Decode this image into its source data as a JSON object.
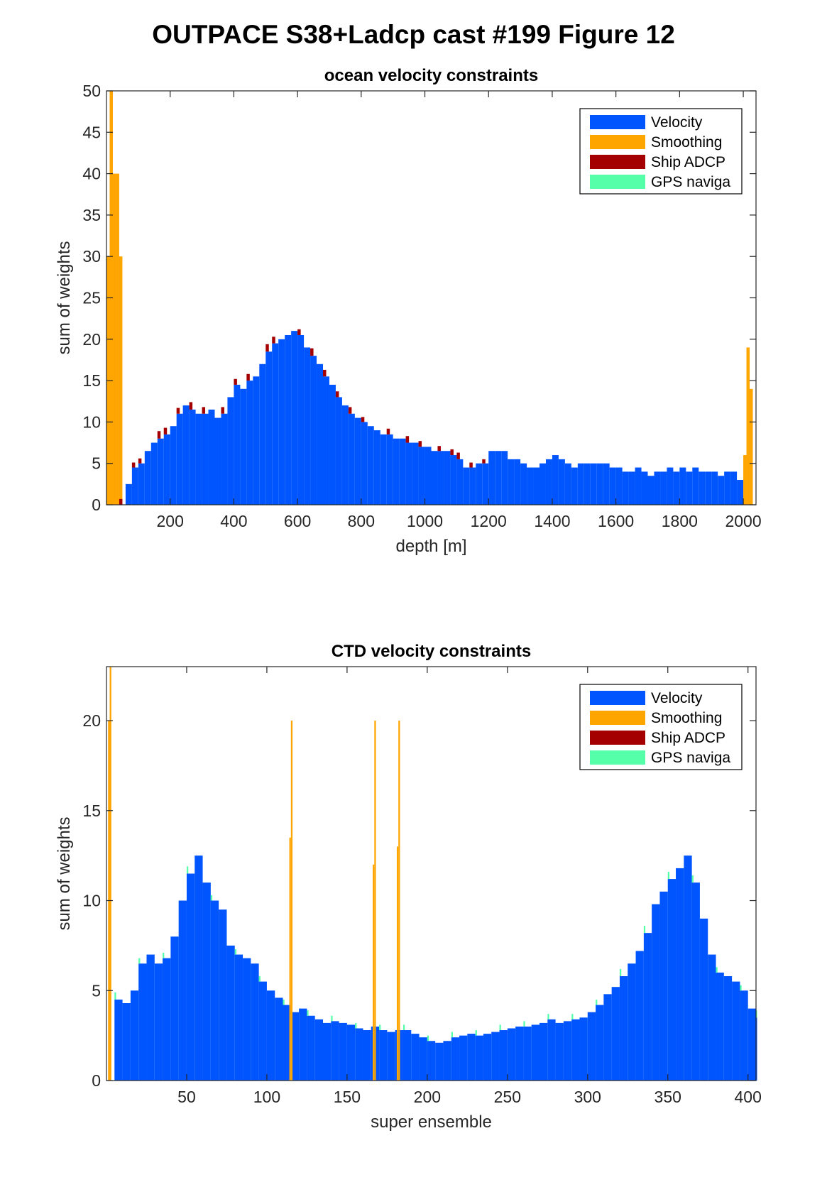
{
  "figure": {
    "title": "OUTPACE S38+Ladcp cast #199  Figure 12"
  },
  "colors": {
    "velocity": "#0055ff",
    "smoothing": "#ffa500",
    "ship_adcp": "#a50000",
    "gps": "#55ffaa",
    "axis": "#262626"
  },
  "chart_data": [
    {
      "type": "bar",
      "stacked": true,
      "title": "ocean velocity constraints",
      "xlabel": "depth [m]",
      "ylabel": "sum of weights",
      "xlim": [
        0,
        2040
      ],
      "ylim": [
        0,
        50
      ],
      "xticks": [
        200,
        400,
        600,
        800,
        1000,
        1200,
        1400,
        1600,
        1800,
        2000
      ],
      "yticks": [
        0,
        5,
        10,
        15,
        20,
        25,
        30,
        35,
        40,
        45,
        50
      ],
      "grid": false,
      "legend_position": "top-right",
      "legend": [
        "Velocity",
        "Smoothing",
        "Ship ADCP",
        "GPS naviga"
      ],
      "bin_width": 10,
      "series": [
        {
          "name": "Velocity",
          "x": [
            0,
            20,
            40,
            60,
            80,
            100,
            120,
            140,
            160,
            180,
            200,
            220,
            240,
            260,
            280,
            300,
            320,
            340,
            360,
            380,
            400,
            420,
            440,
            460,
            480,
            500,
            520,
            540,
            560,
            580,
            600,
            620,
            640,
            660,
            680,
            700,
            720,
            740,
            760,
            780,
            800,
            820,
            840,
            860,
            880,
            900,
            920,
            940,
            960,
            980,
            1000,
            1020,
            1040,
            1060,
            1080,
            1100,
            1120,
            1140,
            1160,
            1180,
            1200,
            1220,
            1240,
            1260,
            1280,
            1300,
            1320,
            1340,
            1360,
            1380,
            1400,
            1420,
            1440,
            1460,
            1480,
            1500,
            1520,
            1540,
            1560,
            1580,
            1600,
            1620,
            1640,
            1660,
            1680,
            1700,
            1720,
            1740,
            1760,
            1780,
            1800,
            1820,
            1840,
            1860,
            1880,
            1900,
            1920,
            1940,
            1960,
            1980,
            2000,
            2020
          ],
          "values": [
            0,
            0,
            0,
            2.5,
            4.5,
            5,
            6.5,
            7.5,
            8,
            8.5,
            9.5,
            11,
            12,
            11.5,
            11,
            11,
            11.5,
            10.5,
            11,
            13,
            14.5,
            14,
            15,
            15.5,
            17,
            18.5,
            19.5,
            20,
            20.5,
            21,
            20.5,
            19,
            18,
            17,
            15.5,
            14.5,
            13,
            12,
            11,
            10.5,
            10,
            9.5,
            9,
            8.5,
            8.5,
            8,
            8,
            7.5,
            7.5,
            7,
            7,
            6.5,
            6.5,
            6.5,
            6,
            5.5,
            4.5,
            4.5,
            5,
            5,
            6.5,
            6.5,
            6.5,
            5.5,
            5.5,
            5,
            4.5,
            4.5,
            5,
            5.5,
            6,
            5.5,
            5,
            4.5,
            5,
            5,
            5,
            5,
            5,
            4.5,
            4.5,
            4,
            4,
            4.5,
            4,
            3.5,
            4,
            4,
            4.5,
            4,
            4.5,
            4,
            4.5,
            4,
            4,
            4,
            3.5,
            4,
            4,
            3,
            0,
            0
          ]
        },
        {
          "name": "Smoothing",
          "x": [
            0,
            10,
            20,
            30,
            40,
            2000,
            2010,
            2020
          ],
          "values": [
            30,
            50,
            40,
            40,
            30,
            6,
            19,
            14
          ]
        },
        {
          "name": "Ship ADCP",
          "x": [
            40,
            80,
            100,
            160,
            180,
            220,
            260,
            300,
            360,
            400,
            440,
            500,
            520,
            600,
            640,
            680,
            720,
            760,
            800,
            880,
            940,
            980,
            1040,
            1080,
            1100,
            1140,
            1180
          ],
          "values": [
            0.7,
            0.6,
            0.6,
            0.9,
            0.8,
            0.7,
            0.9,
            0.8,
            0.8,
            0.7,
            0.8,
            0.9,
            0.8,
            0.7,
            0.9,
            0.8,
            0.7,
            0.8,
            0.6,
            0.7,
            0.8,
            0.7,
            0.6,
            0.7,
            0.8,
            0.6,
            0.5
          ]
        },
        {
          "name": "GPS naviga",
          "x": [],
          "values": []
        }
      ]
    },
    {
      "type": "bar",
      "stacked": true,
      "title": "CTD velocity constraints",
      "xlabel": "super ensemble",
      "ylabel": "sum of weights",
      "xlim": [
        0,
        405
      ],
      "ylim": [
        0,
        23
      ],
      "xticks": [
        50,
        100,
        150,
        200,
        250,
        300,
        350,
        400
      ],
      "yticks": [
        0,
        5,
        10,
        15,
        20
      ],
      "grid": false,
      "legend_position": "top-right",
      "legend": [
        "Velocity",
        "Smoothing",
        "Ship ADCP",
        "GPS naviga"
      ],
      "bin_width": 1,
      "series": [
        {
          "name": "Velocity",
          "x": [
            5,
            10,
            15,
            20,
            25,
            30,
            35,
            40,
            45,
            50,
            55,
            60,
            65,
            70,
            75,
            80,
            85,
            90,
            95,
            100,
            105,
            110,
            115,
            120,
            125,
            130,
            135,
            140,
            145,
            150,
            155,
            160,
            165,
            170,
            175,
            180,
            185,
            190,
            195,
            200,
            205,
            210,
            215,
            220,
            225,
            230,
            235,
            240,
            245,
            250,
            255,
            260,
            265,
            270,
            275,
            280,
            285,
            290,
            295,
            300,
            305,
            310,
            315,
            320,
            325,
            330,
            335,
            340,
            345,
            350,
            355,
            360,
            365,
            370,
            375,
            380,
            385,
            390,
            395,
            400,
            405
          ],
          "values": [
            4.5,
            4.3,
            5,
            6.5,
            7,
            6.5,
            6.8,
            8,
            10,
            11.5,
            12.5,
            11,
            10,
            9.5,
            7.5,
            7,
            6.8,
            6.5,
            5.5,
            5,
            4.6,
            4.2,
            3.8,
            4,
            3.6,
            3.4,
            3.2,
            3.3,
            3.2,
            3.1,
            2.9,
            2.8,
            3,
            2.8,
            2.7,
            2.8,
            2.8,
            2.6,
            2.4,
            2.2,
            2.1,
            2.2,
            2.4,
            2.5,
            2.6,
            2.5,
            2.6,
            2.7,
            2.8,
            2.9,
            3,
            3,
            3.1,
            3.2,
            3.4,
            3.2,
            3.3,
            3.4,
            3.5,
            3.8,
            4.2,
            4.8,
            5.2,
            5.8,
            6.5,
            7.2,
            8.2,
            9.8,
            10.5,
            11.2,
            11.8,
            12.5,
            11,
            9,
            7,
            6,
            5.8,
            5.5,
            5,
            4,
            3.5
          ]
        },
        {
          "name": "Smoothing",
          "x": [
            1,
            2,
            114,
            115,
            166,
            167,
            181,
            182
          ],
          "values": [
            20,
            23,
            13.5,
            20,
            12,
            20,
            13,
            20
          ]
        },
        {
          "name": "Ship ADCP",
          "x": [],
          "values": []
        },
        {
          "name": "GPS naviga",
          "x": [
            5,
            20,
            35,
            50,
            65,
            80,
            95,
            110,
            125,
            140,
            155,
            170,
            185,
            200,
            215,
            230,
            245,
            260,
            275,
            290,
            305,
            320,
            335,
            350,
            365,
            380,
            395,
            405
          ],
          "values": [
            0.4,
            0.3,
            0.3,
            0.4,
            0.3,
            0.3,
            0.3,
            0.3,
            0.3,
            0.3,
            0.3,
            0.3,
            0.3,
            0.3,
            0.3,
            0.3,
            0.3,
            0.3,
            0.3,
            0.3,
            0.3,
            0.4,
            0.4,
            0.4,
            0.4,
            0.3,
            0.3,
            0.4
          ]
        }
      ]
    }
  ]
}
